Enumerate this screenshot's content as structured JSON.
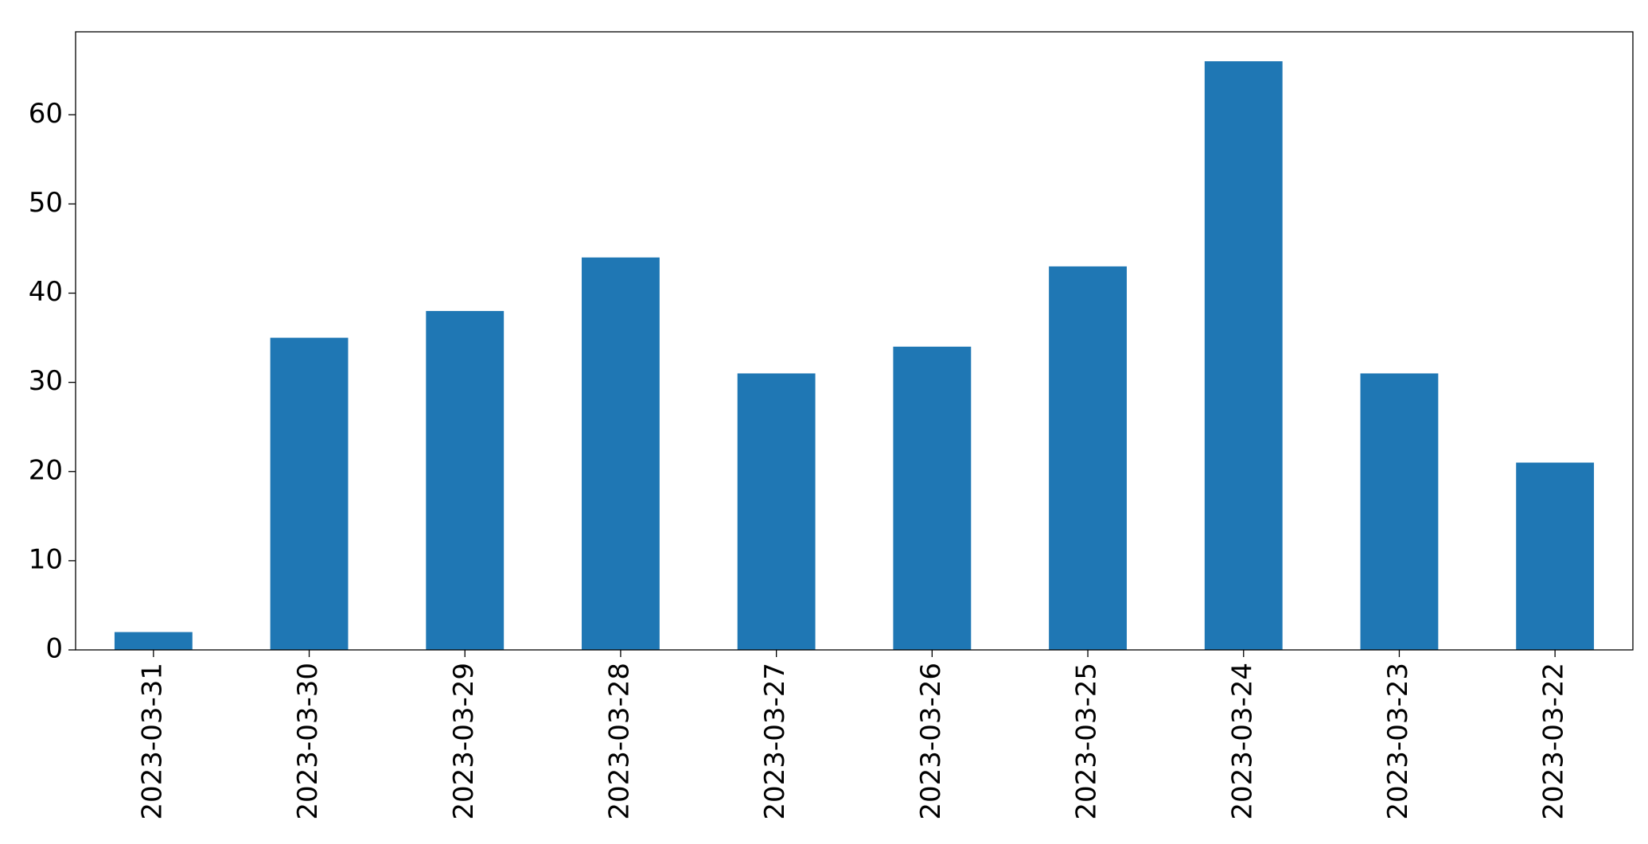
{
  "chart_data": {
    "type": "bar",
    "categories": [
      "2023-03-31",
      "2023-03-30",
      "2023-03-29",
      "2023-03-28",
      "2023-03-27",
      "2023-03-26",
      "2023-03-25",
      "2023-03-24",
      "2023-03-23",
      "2023-03-22"
    ],
    "values": [
      2,
      35,
      38,
      44,
      31,
      34,
      43,
      66,
      31,
      21
    ],
    "color": "#1f77b4",
    "ylim": [
      0,
      69.3
    ],
    "yticks": [
      0,
      10,
      20,
      30,
      40,
      50,
      60
    ],
    "grid": false
  }
}
